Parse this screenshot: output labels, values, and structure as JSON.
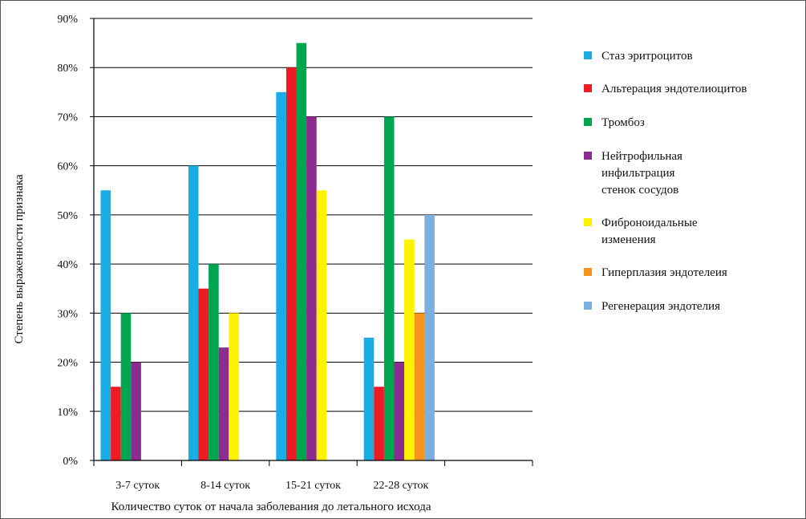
{
  "chart_data": {
    "type": "bar",
    "xlabel": "Количество суток от начала заболевания до летального исхода",
    "ylabel": "Степень выраженности признака",
    "ylim": [
      0,
      90
    ],
    "yticks": [
      "0%",
      "10%",
      "20%",
      "30%",
      "40%",
      "50%",
      "60%",
      "70%",
      "80%",
      "90%"
    ],
    "categories": [
      "3-7 суток",
      "8-14 суток",
      "15-21 суток",
      "22-28 суток",
      ""
    ],
    "grid": true,
    "legend_position": "right",
    "series": [
      {
        "name": "Стаз эритроцитов",
        "color": "#1AADE4",
        "values": [
          55,
          60,
          75,
          25,
          null
        ]
      },
      {
        "name": "Альтерация эндотелиоцитов",
        "color": "#ED1C24",
        "values": [
          15,
          35,
          80,
          15,
          null
        ]
      },
      {
        "name": "Тромбоз",
        "color": "#00A550",
        "values": [
          30,
          40,
          85,
          70,
          null
        ]
      },
      {
        "name": "Нейтрофильная инфильтрация стенок сосудов",
        "color": "#8B2C8F",
        "values": [
          20,
          23,
          70,
          20,
          null
        ]
      },
      {
        "name": "Фиброноидальные изменения",
        "color": "#FFF200",
        "values": [
          null,
          30,
          55,
          45,
          null
        ]
      },
      {
        "name": "Гиперплазия эндотелеия",
        "color": "#F7941D",
        "values": [
          null,
          null,
          null,
          30,
          null
        ]
      },
      {
        "name": "Регенерация эндотелия",
        "color": "#7EAEDD",
        "values": [
          null,
          null,
          null,
          50,
          null
        ]
      }
    ]
  }
}
